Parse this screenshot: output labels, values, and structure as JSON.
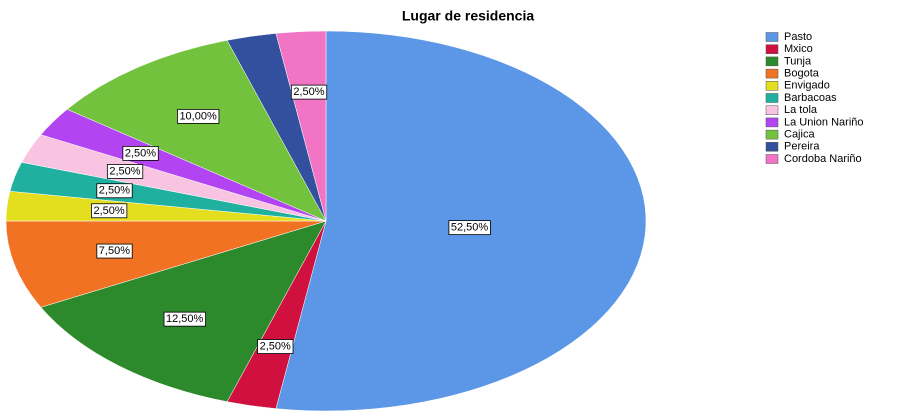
{
  "chart_data": {
    "type": "pie",
    "title": "Lugar de residencia",
    "categories": [
      "Pasto",
      "Mxico",
      "Tunja",
      "Bogota",
      "Envigado",
      "Barbacoas",
      "La tola",
      "La Union Nariño",
      "Cajica",
      "Pereira",
      "Cordoba Nariño"
    ],
    "values": [
      52.5,
      2.5,
      12.5,
      7.5,
      2.5,
      2.5,
      2.5,
      2.5,
      10,
      2.5,
      2.5
    ],
    "value_labels": [
      "52,50%",
      "2,50%",
      "12,50%",
      "7,50%",
      "2,50%",
      "2,50%",
      "2,50%",
      "2,50%",
      "10,00%",
      null,
      "2,50%"
    ],
    "colors": [
      "#5b97e6",
      "#d0103e",
      "#2c8a2c",
      "#f27224",
      "#e3df1e",
      "#1fb0a0",
      "#f8c4e2",
      "#b244f2",
      "#72c23e",
      "#33509e",
      "#f274c4"
    ]
  }
}
